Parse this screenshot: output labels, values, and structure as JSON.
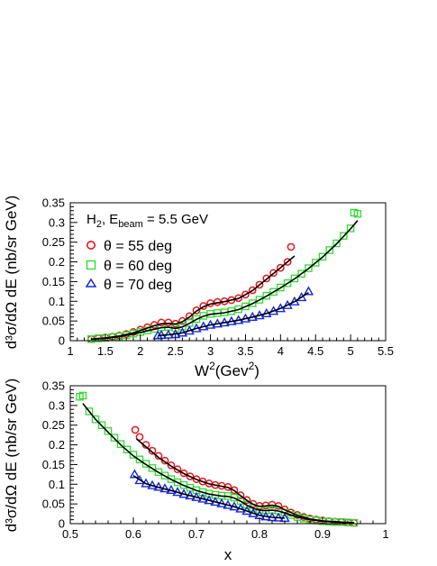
{
  "chart_data": [
    {
      "type": "scatter",
      "x_var": "W",
      "xlabel": "W",
      "xlabel_sup": "2",
      "xlabel_unit_prefix": "(Gev",
      "xlabel_unit_sup": "2",
      "xlabel_unit_suffix": ")",
      "ylabel": "d³σ/dΩ dE (nb/sr GeV)",
      "xlim": [
        1,
        5.5
      ],
      "ylim": [
        0,
        0.35
      ],
      "xticks": [
        "1",
        "1.5",
        "2",
        "2.5",
        "3",
        "3.5",
        "4",
        "4.5",
        "5",
        "5.5"
      ],
      "yticks": [
        "0",
        "0.05",
        "0.1",
        "0.15",
        "0.2",
        "0.25",
        "0.3",
        "0.35"
      ],
      "annotation": {
        "target": "H",
        "target_sub": "2",
        "beam_prefix": ", E",
        "beam_sub": "beam",
        "beam_value": " = 5.5 GeV"
      },
      "legend_position": "upper-left",
      "series": [
        {
          "name": "θ = 55 deg",
          "marker": "circle",
          "color": "#e8141c",
          "x": [
            1.3,
            1.4,
            1.5,
            1.6,
            1.7,
            1.8,
            1.9,
            2.0,
            2.1,
            2.2,
            2.3,
            2.4,
            2.5,
            2.6,
            2.7,
            2.8,
            2.9,
            3.0,
            3.1,
            3.2,
            3.3,
            3.4,
            3.5,
            3.6,
            3.7,
            3.8,
            3.9,
            4.0,
            4.1,
            4.15
          ],
          "y": [
            0.004,
            0.006,
            0.008,
            0.01,
            0.013,
            0.017,
            0.022,
            0.028,
            0.034,
            0.04,
            0.046,
            0.046,
            0.043,
            0.05,
            0.062,
            0.077,
            0.088,
            0.095,
            0.098,
            0.1,
            0.103,
            0.108,
            0.117,
            0.128,
            0.142,
            0.158,
            0.172,
            0.185,
            0.2,
            0.238
          ]
        },
        {
          "name": "θ = 60 deg",
          "marker": "square",
          "color": "#30dc30",
          "x": [
            1.3,
            1.4,
            1.5,
            1.6,
            1.7,
            1.8,
            1.9,
            2.0,
            2.1,
            2.2,
            2.3,
            2.4,
            2.5,
            2.6,
            2.7,
            2.8,
            2.9,
            3.0,
            3.1,
            3.2,
            3.3,
            3.4,
            3.5,
            3.6,
            3.7,
            3.8,
            3.9,
            4.0,
            4.1,
            4.2,
            4.3,
            4.4,
            4.5,
            4.6,
            4.7,
            4.8,
            4.9,
            5.0,
            5.05,
            5.1
          ],
          "y": [
            0.004,
            0.006,
            0.007,
            0.009,
            0.011,
            0.014,
            0.018,
            0.022,
            0.026,
            0.03,
            0.034,
            0.035,
            0.032,
            0.036,
            0.045,
            0.055,
            0.063,
            0.068,
            0.07,
            0.072,
            0.075,
            0.08,
            0.087,
            0.095,
            0.104,
            0.114,
            0.124,
            0.135,
            0.146,
            0.158,
            0.17,
            0.184,
            0.198,
            0.213,
            0.23,
            0.247,
            0.266,
            0.285,
            0.325,
            0.322
          ]
        },
        {
          "name": "θ = 70 deg",
          "marker": "triangle",
          "color": "#1428dc",
          "x": [
            2.25,
            2.3,
            2.4,
            2.5,
            2.6,
            2.7,
            2.8,
            2.9,
            3.0,
            3.1,
            3.2,
            3.3,
            3.4,
            3.5,
            3.6,
            3.7,
            3.8,
            3.9,
            4.0,
            4.1,
            4.2,
            4.3,
            4.4
          ],
          "y": [
            0.013,
            0.014,
            0.015,
            0.016,
            0.02,
            0.025,
            0.031,
            0.036,
            0.04,
            0.043,
            0.046,
            0.049,
            0.052,
            0.056,
            0.06,
            0.064,
            0.069,
            0.075,
            0.082,
            0.09,
            0.099,
            0.11,
            0.125
          ]
        }
      ],
      "curves": [
        {
          "x": [
            1.3,
            1.5,
            1.7,
            1.9,
            2.1,
            2.2,
            2.3,
            2.4,
            2.5,
            2.6,
            2.7,
            2.8,
            2.9,
            3.0,
            3.2,
            3.4,
            3.6,
            3.8,
            4.0,
            4.2
          ],
          "y": [
            0.004,
            0.007,
            0.012,
            0.02,
            0.032,
            0.038,
            0.043,
            0.044,
            0.042,
            0.048,
            0.06,
            0.075,
            0.086,
            0.093,
            0.099,
            0.107,
            0.127,
            0.156,
            0.185,
            0.215
          ]
        },
        {
          "x": [
            1.3,
            1.5,
            1.7,
            1.9,
            2.1,
            2.2,
            2.3,
            2.4,
            2.5,
            2.6,
            2.7,
            2.8,
            2.9,
            3.0,
            3.2,
            3.4,
            3.6,
            3.8,
            4.0,
            4.2,
            4.4,
            4.6,
            4.8,
            5.0,
            5.1
          ],
          "y": [
            0.004,
            0.006,
            0.01,
            0.017,
            0.025,
            0.029,
            0.033,
            0.034,
            0.031,
            0.035,
            0.044,
            0.054,
            0.062,
            0.067,
            0.071,
            0.079,
            0.094,
            0.113,
            0.134,
            0.157,
            0.183,
            0.212,
            0.246,
            0.284,
            0.305
          ]
        },
        {
          "x": [
            2.25,
            2.4,
            2.6,
            2.8,
            3.0,
            3.2,
            3.4,
            3.6,
            3.8,
            4.0,
            4.2,
            4.4
          ],
          "y": [
            0.013,
            0.015,
            0.02,
            0.031,
            0.04,
            0.046,
            0.052,
            0.06,
            0.069,
            0.082,
            0.099,
            0.122
          ]
        }
      ]
    },
    {
      "type": "scatter",
      "x_var": "x",
      "xlabel": "x",
      "ylabel": "d³σ/dΩ dE (nb/sr GeV)",
      "xlim": [
        0.5,
        1
      ],
      "ylim": [
        0,
        0.35
      ],
      "xticks": [
        "0.5",
        "0.6",
        "0.7",
        "0.8",
        "0.9",
        "1"
      ],
      "yticks": [
        "0",
        "0.05",
        "0.1",
        "0.15",
        "0.2",
        "0.25",
        "0.3",
        "0.35"
      ],
      "series": [
        {
          "name": "θ = 55 deg",
          "marker": "circle",
          "color": "#e8141c",
          "x": [
            0.603,
            0.61,
            0.62,
            0.63,
            0.64,
            0.65,
            0.66,
            0.67,
            0.68,
            0.69,
            0.7,
            0.71,
            0.72,
            0.73,
            0.74,
            0.75,
            0.76,
            0.77,
            0.78,
            0.79,
            0.8,
            0.81,
            0.82,
            0.83,
            0.84,
            0.85,
            0.86,
            0.87,
            0.88,
            0.89,
            0.9,
            0.91,
            0.92,
            0.93,
            0.94,
            0.95
          ],
          "y": [
            0.238,
            0.22,
            0.2,
            0.185,
            0.172,
            0.16,
            0.148,
            0.138,
            0.128,
            0.12,
            0.113,
            0.107,
            0.102,
            0.098,
            0.096,
            0.093,
            0.085,
            0.072,
            0.06,
            0.05,
            0.045,
            0.046,
            0.048,
            0.045,
            0.036,
            0.028,
            0.022,
            0.017,
            0.013,
            0.01,
            0.008,
            0.006,
            0.005,
            0.004,
            0.003,
            0.002
          ]
        },
        {
          "name": "θ = 60 deg",
          "marker": "square",
          "color": "#30dc30",
          "x": [
            0.515,
            0.52,
            0.53,
            0.54,
            0.55,
            0.56,
            0.57,
            0.58,
            0.59,
            0.6,
            0.61,
            0.62,
            0.63,
            0.64,
            0.65,
            0.66,
            0.67,
            0.68,
            0.69,
            0.7,
            0.71,
            0.72,
            0.73,
            0.74,
            0.75,
            0.76,
            0.77,
            0.78,
            0.79,
            0.8,
            0.81,
            0.82,
            0.83,
            0.84,
            0.85,
            0.86,
            0.87,
            0.88,
            0.89,
            0.9,
            0.91,
            0.92,
            0.93,
            0.94,
            0.95
          ],
          "y": [
            0.322,
            0.325,
            0.285,
            0.265,
            0.25,
            0.235,
            0.218,
            0.202,
            0.188,
            0.175,
            0.163,
            0.152,
            0.141,
            0.131,
            0.122,
            0.113,
            0.105,
            0.098,
            0.091,
            0.085,
            0.08,
            0.076,
            0.073,
            0.071,
            0.07,
            0.066,
            0.058,
            0.048,
            0.04,
            0.035,
            0.034,
            0.035,
            0.033,
            0.028,
            0.022,
            0.017,
            0.013,
            0.01,
            0.008,
            0.006,
            0.005,
            0.004,
            0.004,
            0.003,
            0.002
          ]
        },
        {
          "name": "θ = 70 deg",
          "marker": "triangle",
          "color": "#1428dc",
          "x": [
            0.602,
            0.61,
            0.62,
            0.63,
            0.64,
            0.65,
            0.66,
            0.67,
            0.68,
            0.69,
            0.7,
            0.71,
            0.72,
            0.73,
            0.74,
            0.75,
            0.76,
            0.77,
            0.78,
            0.79,
            0.8,
            0.81,
            0.82,
            0.83,
            0.84
          ],
          "y": [
            0.125,
            0.11,
            0.102,
            0.097,
            0.093,
            0.089,
            0.085,
            0.08,
            0.075,
            0.071,
            0.067,
            0.063,
            0.059,
            0.055,
            0.051,
            0.047,
            0.043,
            0.038,
            0.032,
            0.026,
            0.021,
            0.018,
            0.016,
            0.015,
            0.014
          ]
        }
      ],
      "curves": [
        {
          "x": [
            0.605,
            0.62,
            0.64,
            0.66,
            0.68,
            0.7,
            0.72,
            0.74,
            0.75,
            0.76,
            0.77,
            0.78,
            0.79,
            0.8,
            0.81,
            0.82,
            0.83,
            0.84,
            0.86,
            0.88,
            0.9,
            0.92,
            0.95
          ],
          "y": [
            0.215,
            0.195,
            0.168,
            0.146,
            0.127,
            0.112,
            0.101,
            0.095,
            0.092,
            0.084,
            0.071,
            0.059,
            0.049,
            0.044,
            0.045,
            0.047,
            0.044,
            0.035,
            0.021,
            0.012,
            0.007,
            0.005,
            0.002
          ]
        },
        {
          "x": [
            0.52,
            0.54,
            0.56,
            0.58,
            0.6,
            0.62,
            0.64,
            0.66,
            0.68,
            0.7,
            0.72,
            0.74,
            0.75,
            0.76,
            0.77,
            0.78,
            0.79,
            0.8,
            0.81,
            0.82,
            0.83,
            0.84,
            0.86,
            0.88,
            0.9,
            0.92,
            0.95
          ],
          "y": [
            0.305,
            0.265,
            0.232,
            0.2,
            0.172,
            0.15,
            0.13,
            0.112,
            0.097,
            0.084,
            0.075,
            0.07,
            0.069,
            0.065,
            0.057,
            0.047,
            0.039,
            0.034,
            0.033,
            0.034,
            0.032,
            0.027,
            0.017,
            0.01,
            0.006,
            0.004,
            0.002
          ]
        },
        {
          "x": [
            0.6,
            0.62,
            0.64,
            0.66,
            0.68,
            0.7,
            0.72,
            0.74,
            0.76,
            0.78,
            0.8,
            0.82,
            0.84
          ],
          "y": [
            0.122,
            0.101,
            0.092,
            0.084,
            0.075,
            0.067,
            0.059,
            0.051,
            0.043,
            0.032,
            0.021,
            0.016,
            0.014
          ]
        }
      ]
    }
  ]
}
